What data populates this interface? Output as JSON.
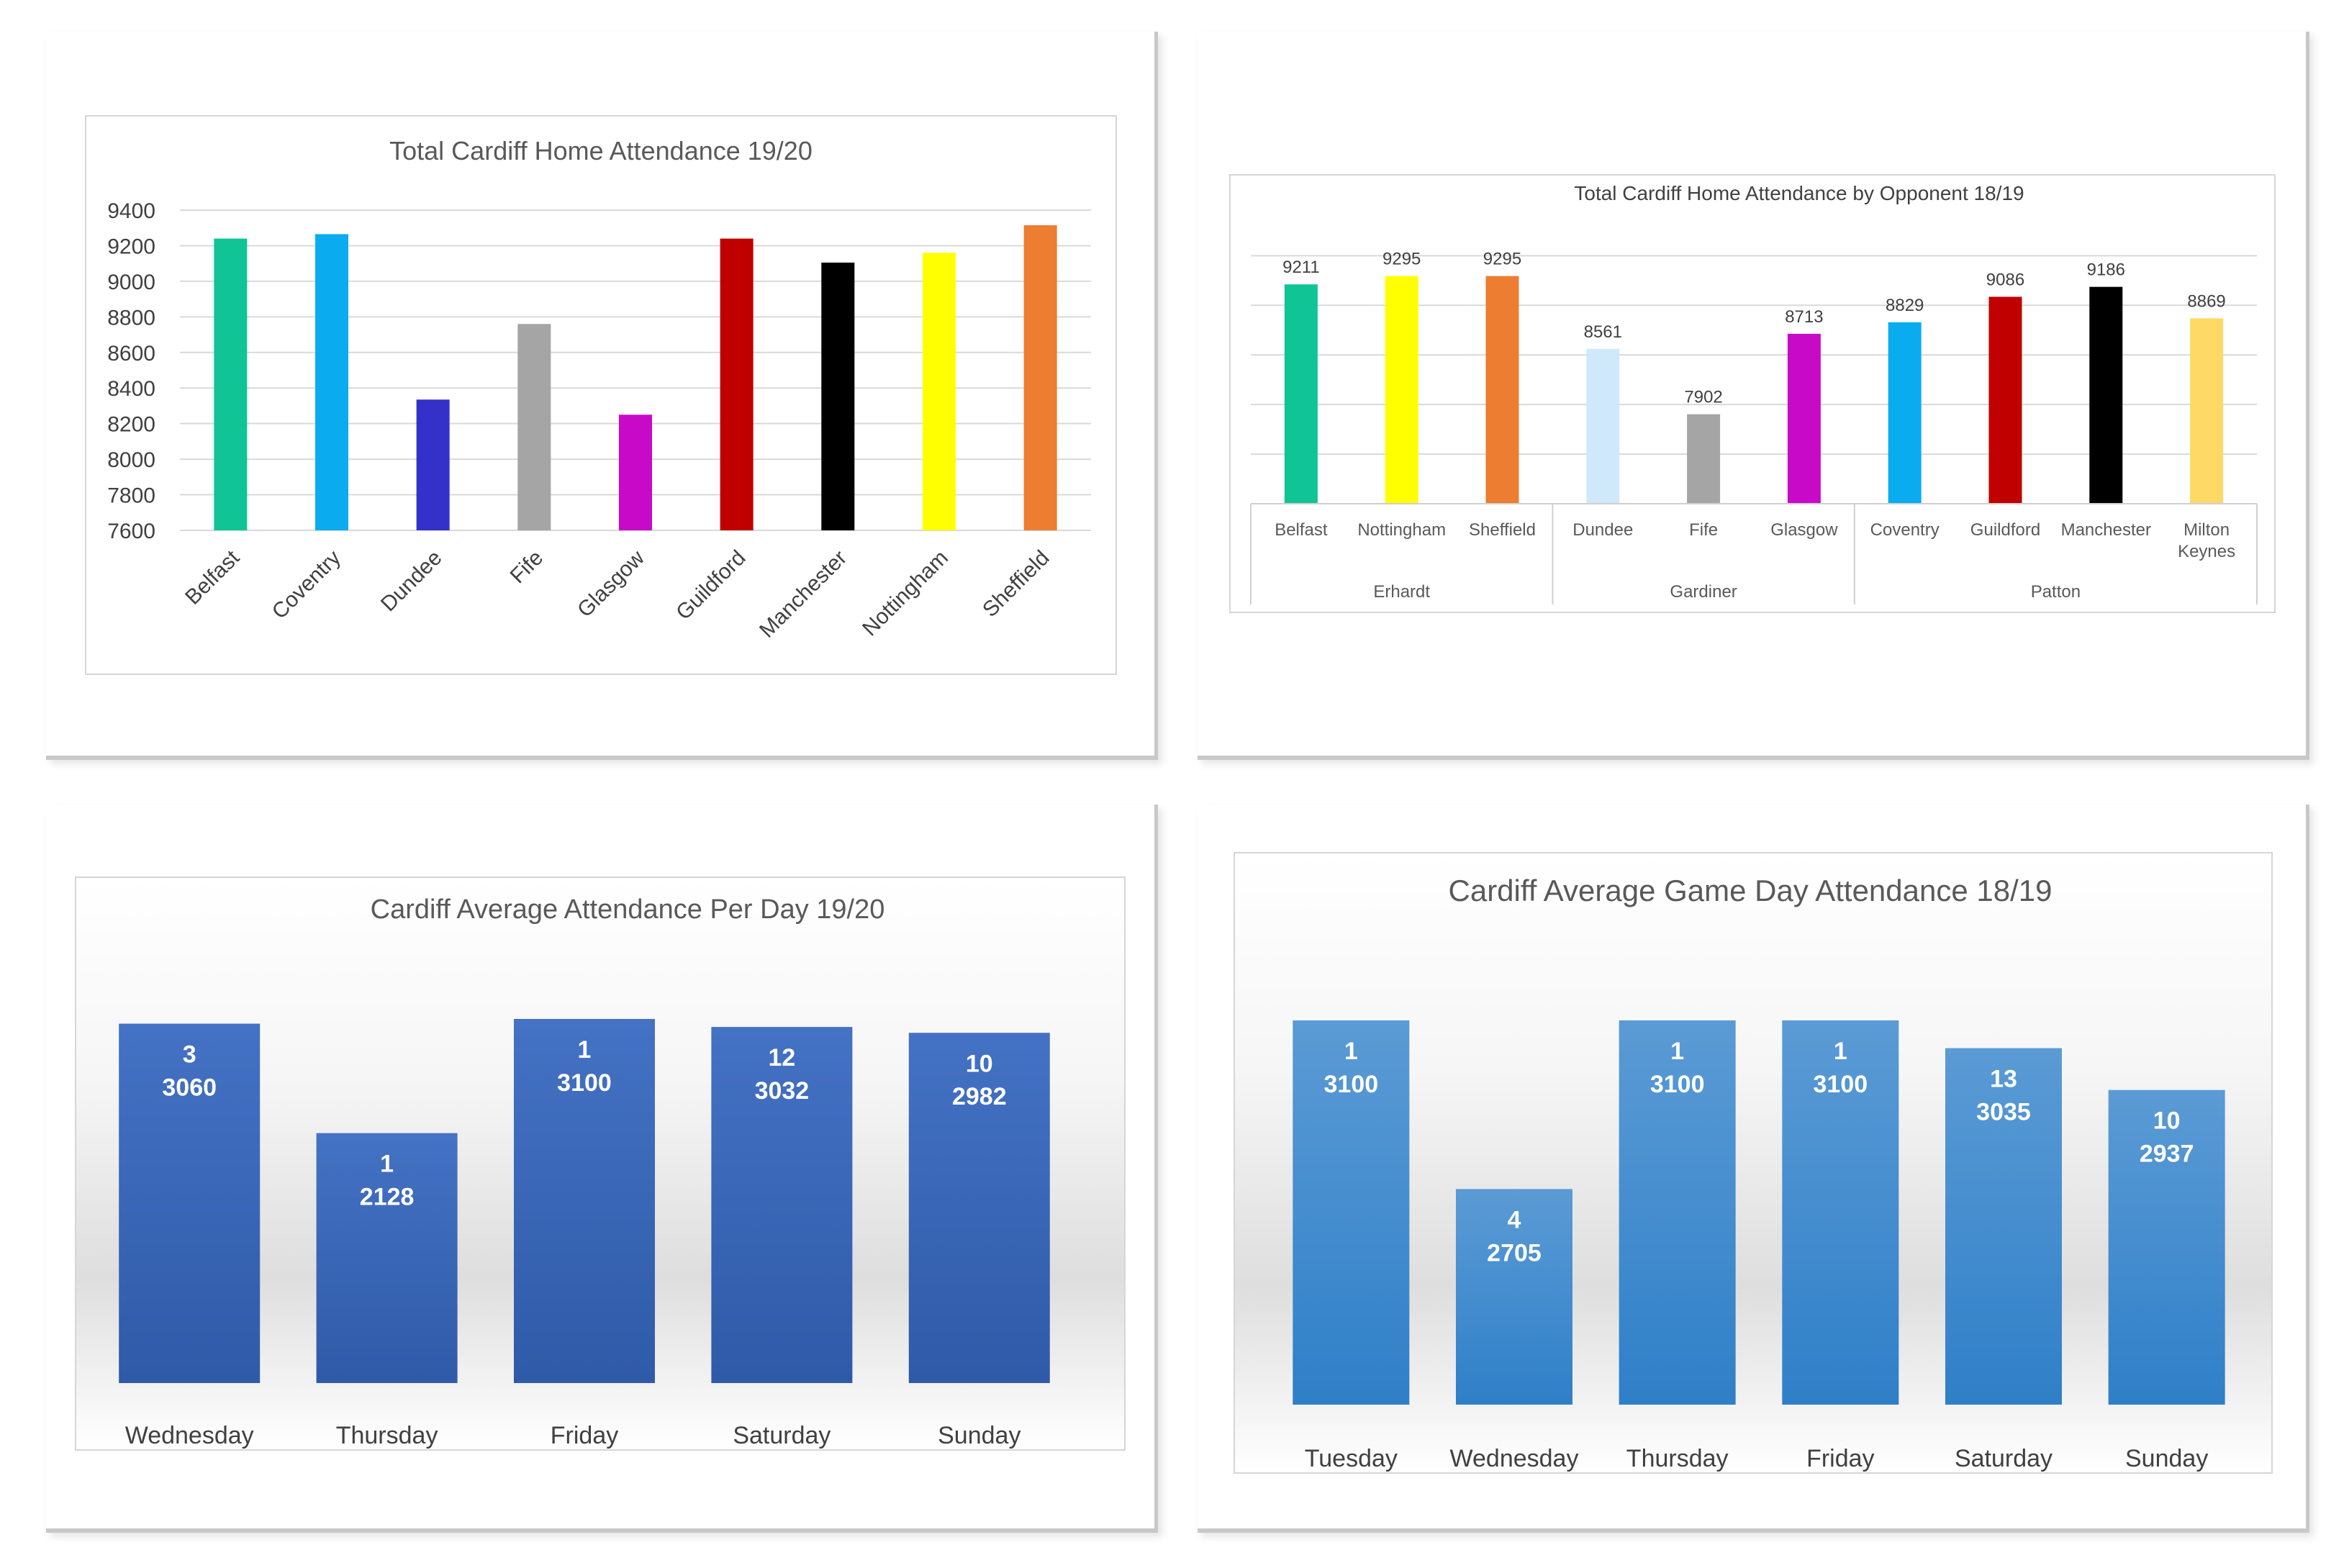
{
  "chart_data": [
    {
      "type": "bar",
      "title": "Total Cardiff Home Attendance 19/20",
      "categories": [
        "Belfast",
        "Coventry",
        "Dundee",
        "Fife",
        "Glasgow",
        "Guildford",
        "Manchester",
        "Nottingham",
        "Sheffield"
      ],
      "values": [
        9240,
        9265,
        8335,
        8760,
        8250,
        9240,
        9105,
        9160,
        9315
      ],
      "colors": [
        "#10c495",
        "#0aacef",
        "#3431c9",
        "#a5a5a5",
        "#c80ac8",
        "#c00000",
        "#000000",
        "#ffff00",
        "#ed7d31"
      ],
      "yticks": [
        7600,
        7800,
        8000,
        8200,
        8400,
        8600,
        8800,
        9000,
        9200,
        9400
      ],
      "ylim": [
        7600,
        9400
      ],
      "xlabel": "",
      "ylabel": "",
      "grid": true
    },
    {
      "type": "bar",
      "title": "Total Cardiff Home Attendance by Opponent 18/19",
      "categories": [
        "Belfast",
        "Nottingham",
        "Sheffield",
        "Dundee",
        "Fife",
        "Glasgow",
        "Coventry",
        "Guildford",
        "Manchester",
        "Milton Keynes"
      ],
      "values": [
        9211,
        9295,
        9295,
        8561,
        7902,
        8713,
        8829,
        9086,
        9186,
        8869
      ],
      "colors": [
        "#10c495",
        "#ffff00",
        "#ed7d31",
        "#cfe9fa",
        "#a5a5a5",
        "#c80ac8",
        "#0aacef",
        "#c00000",
        "#000000",
        "#ffd966"
      ],
      "groups": [
        {
          "name": "Erhardt",
          "count": 3
        },
        {
          "name": "Gardiner",
          "count": 3
        },
        {
          "name": "Patton",
          "count": 4
        }
      ],
      "ylim": [
        7000,
        9800
      ],
      "grid": true
    },
    {
      "type": "bar",
      "title": "Cardiff Average Attendance Per Day 19/20",
      "categories": [
        "Wednesday",
        "Thursday",
        "Friday",
        "Saturday",
        "Sunday"
      ],
      "counts": [
        3,
        1,
        1,
        12,
        10
      ],
      "values": [
        3060,
        2128,
        3100,
        3032,
        2982
      ],
      "ylim": [
        0,
        3100
      ],
      "color_top": "#4472c4",
      "color_bottom": "#2f5aa8"
    },
    {
      "type": "bar",
      "title": "Cardiff Average Game Day Attendance 18/19",
      "categories": [
        "Tuesday",
        "Wednesday",
        "Thursday",
        "Friday",
        "Saturday",
        "Sunday"
      ],
      "counts": [
        1,
        4,
        1,
        1,
        13,
        10
      ],
      "values": [
        3100,
        2705,
        3100,
        3100,
        3035,
        2937
      ],
      "ylim": [
        2200,
        3100
      ],
      "color_top": "#5b9bd5",
      "color_bottom": "#2f7fc8"
    }
  ]
}
